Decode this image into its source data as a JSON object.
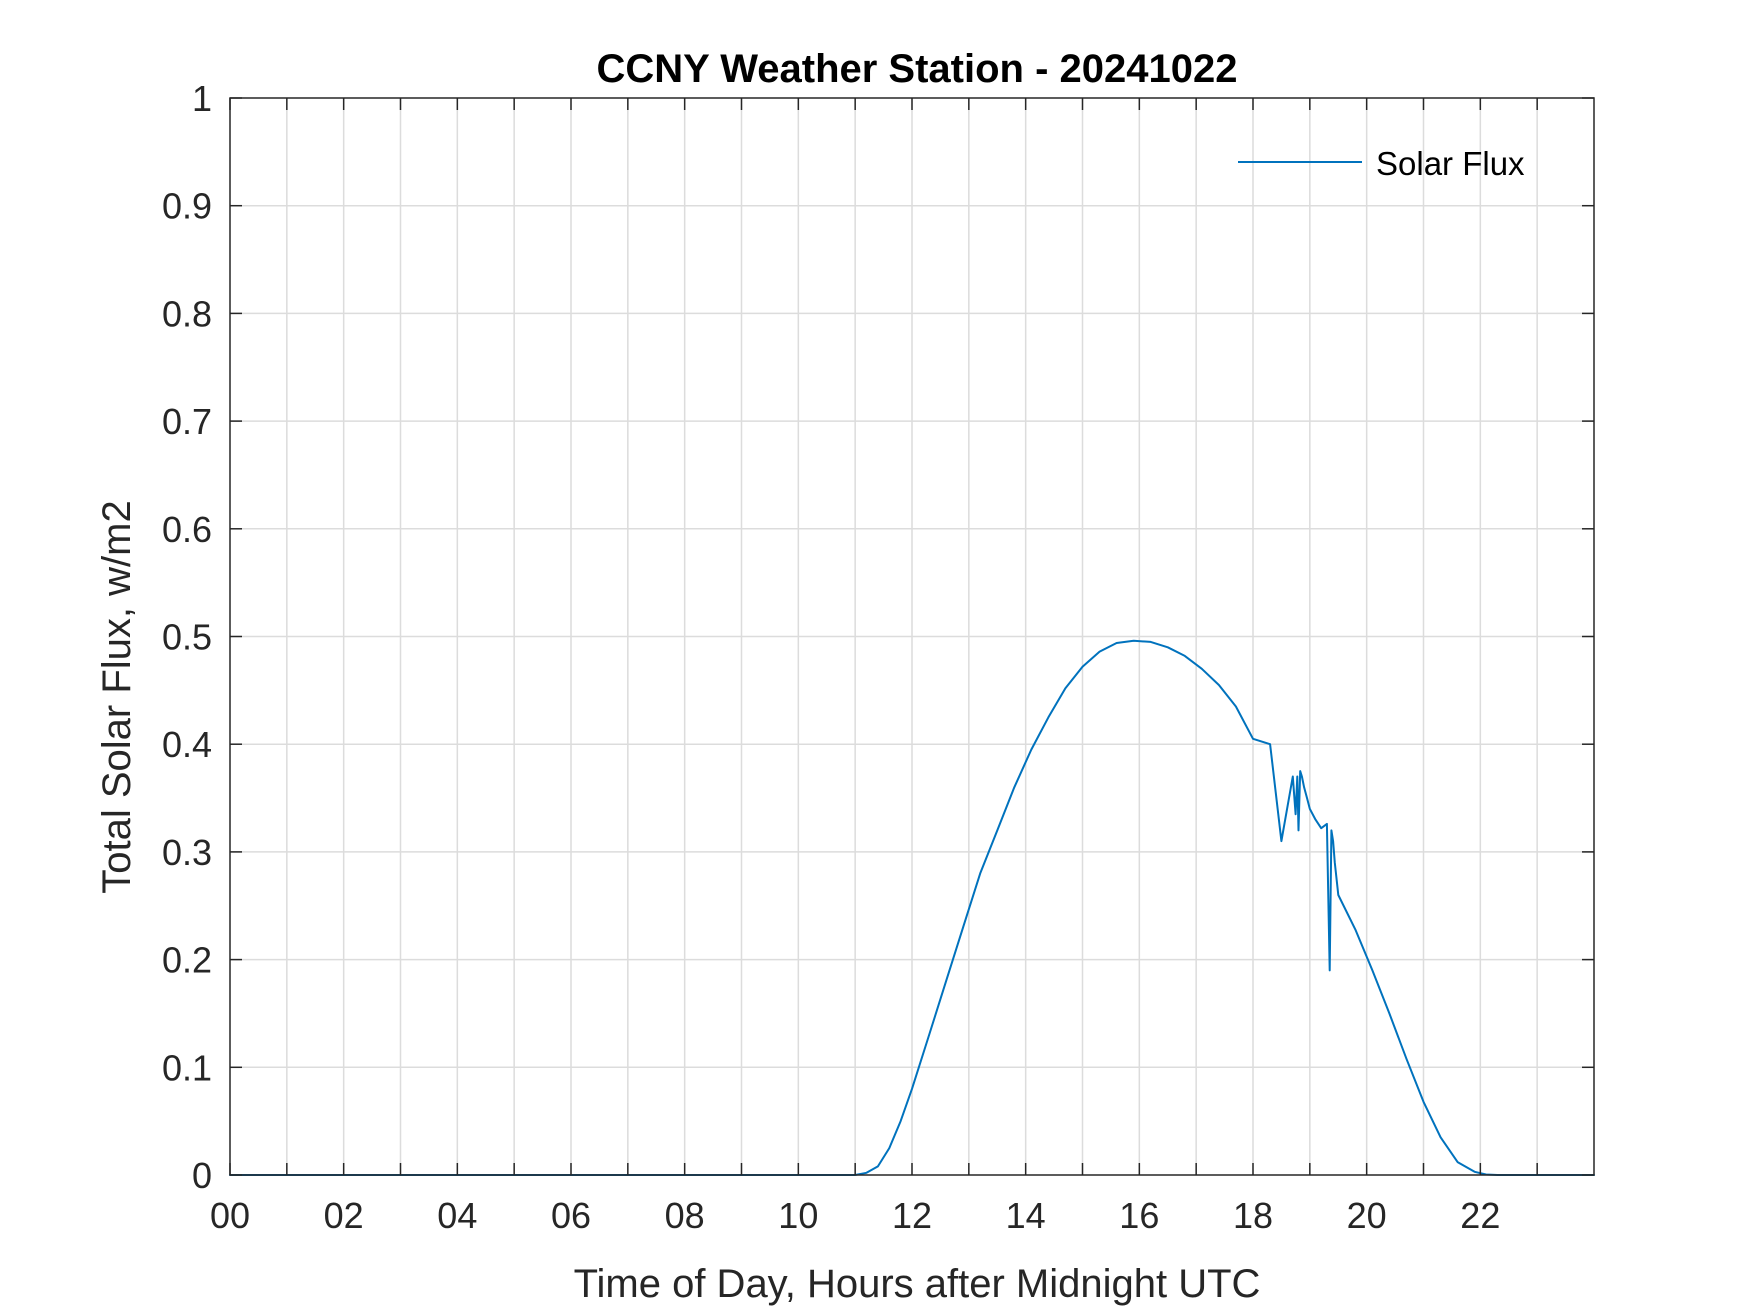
{
  "chart_data": {
    "type": "line",
    "title": "CCNY Weather Station - 20241022",
    "xlabel": "Time of Day, Hours after Midnight UTC",
    "ylabel": "Total Solar Flux, w/m2",
    "xlim": [
      0,
      24
    ],
    "ylim": [
      0,
      1
    ],
    "x_ticks": [
      0,
      2,
      4,
      6,
      8,
      10,
      12,
      14,
      16,
      18,
      20,
      22
    ],
    "x_tick_labels": [
      "00",
      "02",
      "04",
      "06",
      "08",
      "10",
      "12",
      "14",
      "16",
      "18",
      "20",
      "22"
    ],
    "y_ticks": [
      0,
      0.1,
      0.2,
      0.3,
      0.4,
      0.5,
      0.6,
      0.7,
      0.8,
      0.9,
      1
    ],
    "y_tick_labels": [
      "0",
      "0.1",
      "0.2",
      "0.3",
      "0.4",
      "0.5",
      "0.6",
      "0.7",
      "0.8",
      "0.9",
      "1"
    ],
    "grid": true,
    "legend_position": "top-right",
    "series": [
      {
        "name": "Solar Flux",
        "color": "#0072BD",
        "x": [
          0,
          11.0,
          11.2,
          11.4,
          11.6,
          11.8,
          12.0,
          12.3,
          12.6,
          12.9,
          13.2,
          13.5,
          13.8,
          14.1,
          14.4,
          14.7,
          15.0,
          15.3,
          15.6,
          15.9,
          16.2,
          16.5,
          16.8,
          17.1,
          17.4,
          17.7,
          18.0,
          18.3,
          18.5,
          18.7,
          18.75,
          18.78,
          18.8,
          18.83,
          18.86,
          18.9,
          18.95,
          19.0,
          19.1,
          19.2,
          19.3,
          19.35,
          19.38,
          19.41,
          19.44,
          19.5,
          19.8,
          20.1,
          20.4,
          20.7,
          21.0,
          21.3,
          21.6,
          21.9,
          22.1,
          22.3,
          22.5,
          22.8,
          24.0
        ],
        "y": [
          0,
          0,
          0.002,
          0.008,
          0.025,
          0.05,
          0.08,
          0.13,
          0.18,
          0.23,
          0.28,
          0.32,
          0.36,
          0.395,
          0.425,
          0.452,
          0.472,
          0.486,
          0.494,
          0.496,
          0.495,
          0.49,
          0.482,
          0.47,
          0.455,
          0.435,
          0.405,
          0.4,
          0.31,
          0.37,
          0.335,
          0.37,
          0.32,
          0.375,
          0.37,
          0.36,
          0.35,
          0.34,
          0.33,
          0.322,
          0.326,
          0.19,
          0.32,
          0.31,
          0.29,
          0.26,
          0.228,
          0.19,
          0.15,
          0.108,
          0.068,
          0.035,
          0.012,
          0.003,
          0.0005,
          0,
          0,
          0,
          0
        ]
      }
    ]
  }
}
